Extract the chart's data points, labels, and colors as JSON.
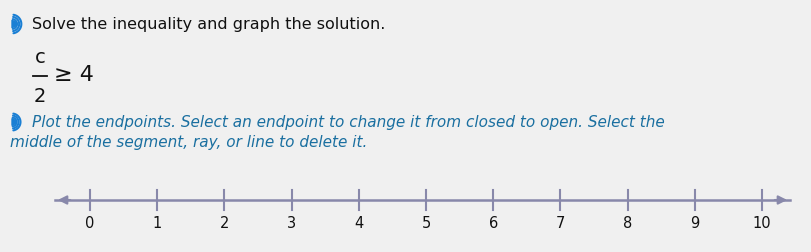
{
  "title_line1": "Solve the inequality and graph the solution.",
  "instruction_line1": "Plot the endpoints. Select an endpoint to change it from closed to open. Select the",
  "instruction_line2": "middle of the segment, ray, or line to delete it.",
  "tick_labels": [
    0,
    1,
    2,
    3,
    4,
    5,
    6,
    7,
    8,
    9,
    10
  ],
  "bg_color": "#f0f0f0",
  "line_color": "#8888aa",
  "text_color": "#111111",
  "title_color": "#111111",
  "instruction_color": "#1a6fa0",
  "speaker_color": "#1a7fd4",
  "figsize": [
    8.12,
    2.52
  ],
  "dpi": 100
}
